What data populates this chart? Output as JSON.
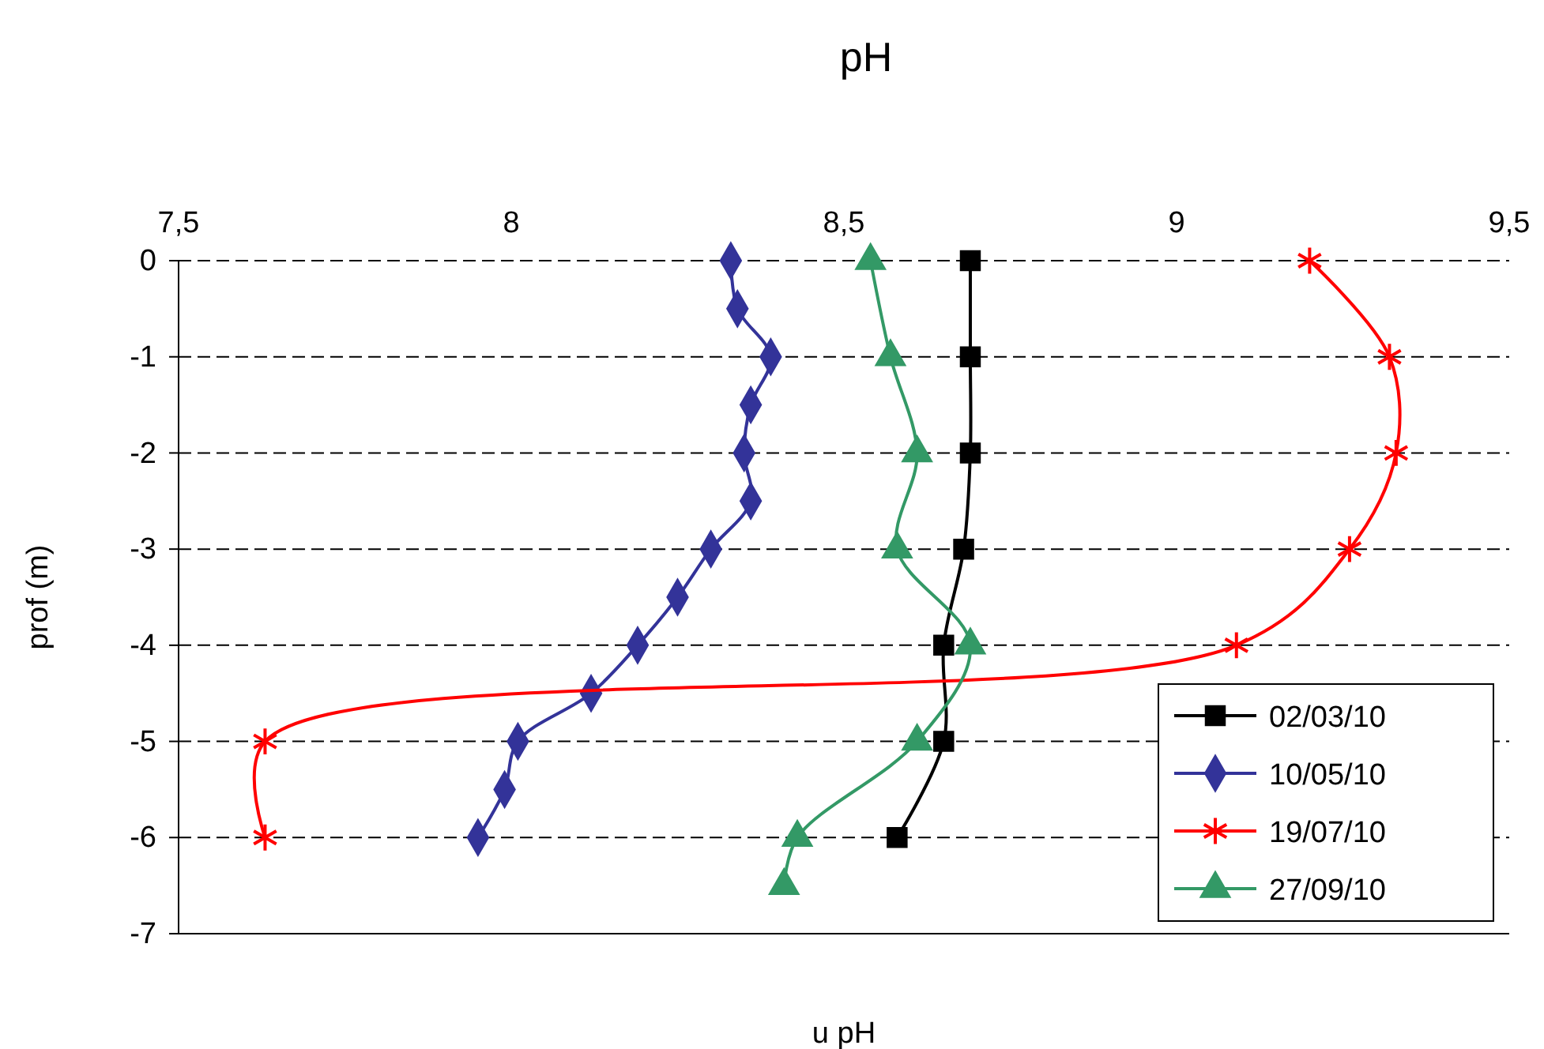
{
  "chart_data": {
    "type": "line",
    "title": "pH",
    "xlabel": "u pH",
    "ylabel": "prof (m)",
    "xlim": [
      7.5,
      9.5
    ],
    "xticks": [
      {
        "value": 7.5,
        "label": "7,5"
      },
      8,
      {
        "value": 8.5,
        "label": "8,5"
      },
      9,
      {
        "value": 9.5,
        "label": "9,5"
      }
    ],
    "ylim": [
      -7,
      0
    ],
    "yticks": [
      -7,
      -6,
      -5,
      -4,
      -3,
      -2,
      -1,
      0
    ],
    "grid": "y",
    "legend": "bottom right",
    "series": [
      {
        "name": "02/03/10",
        "color": "#000000",
        "marker": "square",
        "x": [
          8.69,
          8.69,
          8.69,
          8.68,
          8.65,
          8.65,
          8.58
        ],
        "values": [
          0,
          -1,
          -2,
          -3,
          -4,
          -5,
          -6
        ]
      },
      {
        "name": "10/05/10",
        "color": "#333399",
        "marker": "diamond",
        "x": [
          8.33,
          8.34,
          8.39,
          8.36,
          8.35,
          8.36,
          8.3,
          8.25,
          8.19,
          8.12,
          8.01,
          7.99,
          7.95
        ],
        "values": [
          0,
          -0.5,
          -1,
          -1.5,
          -2,
          -2.5,
          -3,
          -3.5,
          -4,
          -4.5,
          -5,
          -5.5,
          -6
        ]
      },
      {
        "name": "19/07/10",
        "color": "#ff0000",
        "marker": "cross",
        "x": [
          9.2,
          9.32,
          9.33,
          9.26,
          9.09,
          7.63,
          7.63
        ],
        "values": [
          0,
          -1,
          -2,
          -3,
          -4,
          -5,
          -6
        ]
      },
      {
        "name": "27/09/10",
        "color": "#339966",
        "marker": "triangle",
        "x": [
          8.54,
          8.57,
          8.61,
          8.58,
          8.69,
          8.61,
          8.43,
          8.41
        ],
        "values": [
          0,
          -1,
          -2,
          -3,
          -4,
          -5,
          -6,
          -6.5
        ]
      }
    ]
  }
}
